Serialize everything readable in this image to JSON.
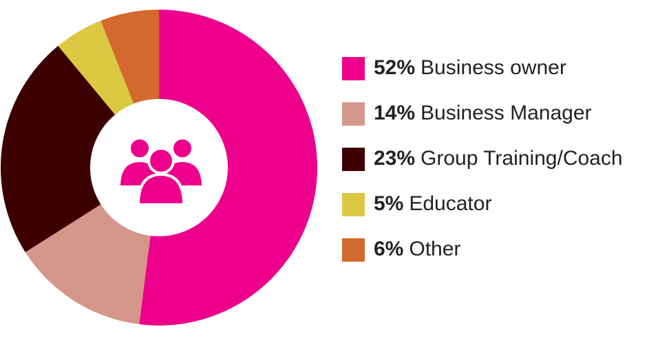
{
  "chart_data": {
    "type": "donut",
    "categories": [
      "Business owner",
      "Business Manager",
      "Group Training/Coach",
      "Educator",
      "Other"
    ],
    "values": [
      52,
      14,
      23,
      5,
      6
    ],
    "value_labels": [
      "52%",
      "14%",
      "23%",
      "5%",
      "6%"
    ],
    "colors": [
      "#ec008c",
      "#d4968a",
      "#3d0000",
      "#dcc843",
      "#d2692e"
    ]
  }
}
